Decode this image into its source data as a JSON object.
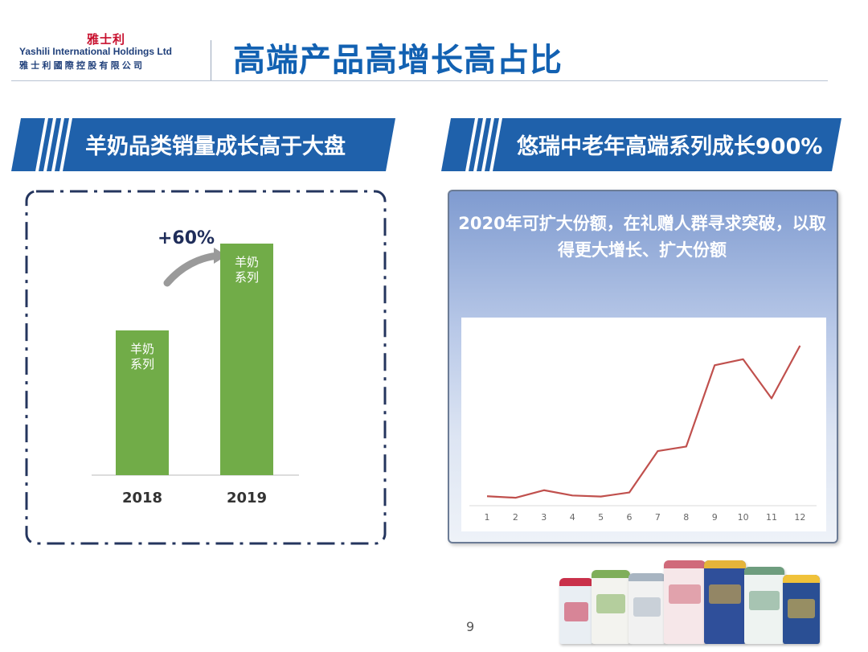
{
  "header": {
    "logo_cn": "雅士利",
    "logo_en": "Yashili International Holdings Ltd",
    "logo_cn_full": "雅士利國際控股有限公司",
    "title": "高端产品高增长高占比"
  },
  "left_section": {
    "banner": "羊奶品类销量成长高于大盘",
    "growth_label": "+60%",
    "chart_data": {
      "type": "bar",
      "categories": [
        "2018",
        "2019"
      ],
      "bar_labels": [
        "羊奶\n系列",
        "羊奶\n系列"
      ],
      "values": [
        1.0,
        1.6
      ],
      "ylim": [
        0,
        1.75
      ],
      "annotation": "+60%",
      "bar_color": "#71ac48",
      "grid": false
    }
  },
  "right_section": {
    "banner": "悠瑞中老年高端系列成长900%",
    "caption": "2020年可扩大份额，在礼赠人群寻求突破，以取得更大增长、扩大份额",
    "chart_data": {
      "type": "line",
      "x": [
        1,
        2,
        3,
        4,
        5,
        6,
        7,
        8,
        9,
        10,
        11,
        12
      ],
      "y": [
        2.0,
        1.0,
        6.0,
        2.5,
        1.8,
        4.5,
        32.0,
        35.0,
        89.0,
        93.0,
        67.0,
        102.0
      ],
      "ylim": [
        0,
        110
      ],
      "line_color": "#c0504d",
      "grid": false
    }
  },
  "footer": {
    "page_number": "9"
  },
  "products": {
    "tins": [
      {
        "name": "tin-1",
        "color": "#e9eef3",
        "accent": "#c9304a"
      },
      {
        "name": "tin-2",
        "color": "#f3f3ef",
        "accent": "#7fae5a"
      },
      {
        "name": "tin-3",
        "color": "#f1f1f1",
        "accent": "#a8b5c2"
      },
      {
        "name": "tin-4",
        "color": "#f6e7e9",
        "accent": "#d06a7a"
      },
      {
        "name": "tin-5",
        "color": "#2f4f9a",
        "accent": "#e5b43a"
      },
      {
        "name": "tin-6",
        "color": "#eef3f1",
        "accent": "#6e9d7e"
      },
      {
        "name": "tin-7",
        "color": "#2a4f94",
        "accent": "#f0c23a"
      }
    ]
  },
  "colors": {
    "brand_blue": "#1261b2",
    "banner_blue": "#1f61ab",
    "bar_green": "#71ac48",
    "line_red": "#c0504d",
    "dash_navy": "#24355e"
  }
}
